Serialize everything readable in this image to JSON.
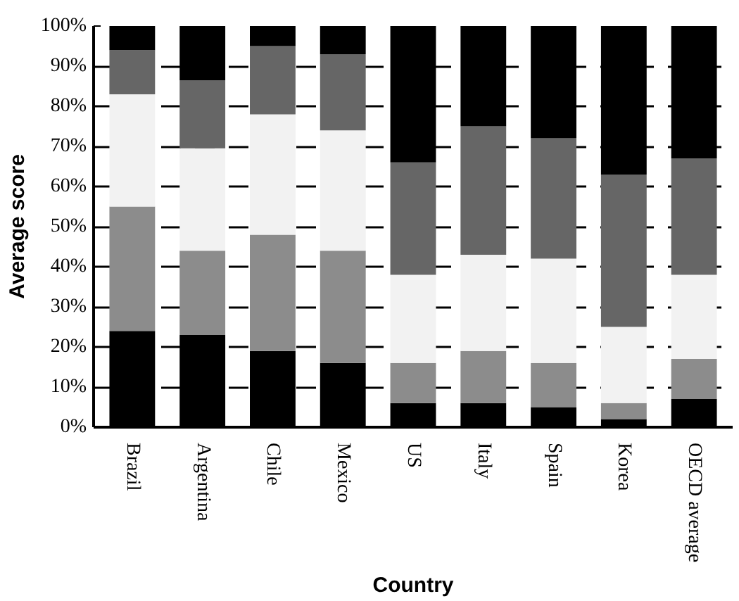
{
  "chart_data": {
    "type": "bar",
    "stacked": true,
    "xlabel": "Country",
    "ylabel": "Average score",
    "categories": [
      "Brazil",
      "Argentina",
      "Chile",
      "Mexico",
      "US",
      "Italy",
      "Spain",
      "Korea",
      "OECD average"
    ],
    "series": [
      {
        "color": "#000000",
        "values": [
          24,
          23,
          19,
          16,
          6,
          6,
          5,
          2,
          7
        ]
      },
      {
        "color": "#8c8c8c",
        "values": [
          31,
          21,
          29,
          28,
          10,
          13,
          11,
          4,
          10
        ]
      },
      {
        "color": "#f2f2f2",
        "values": [
          28,
          25.5,
          30,
          30,
          22,
          24,
          26,
          19,
          21
        ]
      },
      {
        "color": "#666666",
        "values": [
          11,
          17,
          17,
          19,
          28,
          32,
          30,
          38,
          29
        ]
      },
      {
        "color": "#000000",
        "values": [
          6,
          13.5,
          5,
          7,
          34,
          25,
          28,
          37,
          33
        ]
      }
    ],
    "ylim": [
      0,
      100
    ],
    "yticks": [
      {
        "value": 0,
        "label": "0%"
      },
      {
        "value": 10,
        "label": "10%"
      },
      {
        "value": 20,
        "label": "20%"
      },
      {
        "value": 30,
        "label": "30%"
      },
      {
        "value": 40,
        "label": "40%"
      },
      {
        "value": 50,
        "label": "50%"
      },
      {
        "value": 60,
        "label": "60%"
      },
      {
        "value": 70,
        "label": "70%"
      },
      {
        "value": 80,
        "label": "80%"
      },
      {
        "value": 90,
        "label": "90%"
      },
      {
        "value": 100,
        "label": "100%"
      }
    ],
    "grid": "y"
  }
}
